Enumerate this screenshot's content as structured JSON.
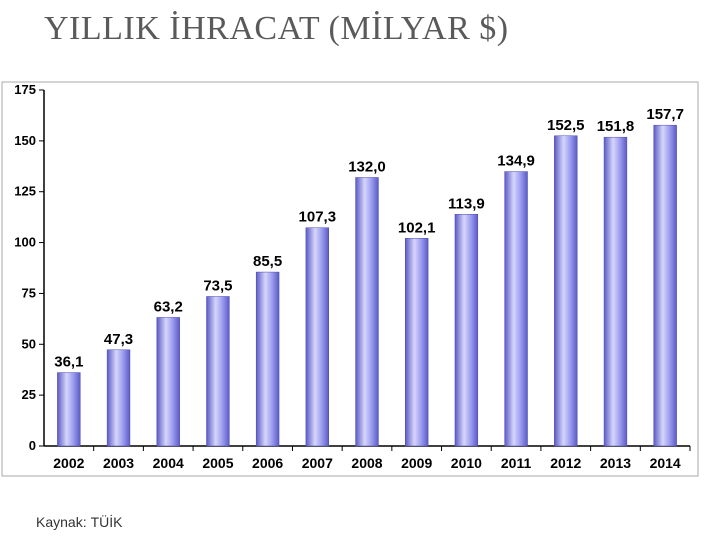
{
  "slide": {
    "title": "YILLIK İHRACAT (MİLYAR $)"
  },
  "source": {
    "label": "Kaynak:",
    "value": "TÜİK"
  },
  "colors": {
    "bar_light": "#d6d6fb",
    "bar_mid": "#9b9bef",
    "bar_dark": "#5a5ac6",
    "axis": "#000000",
    "border": "#a8a8a8"
  },
  "chart_data": {
    "type": "bar",
    "title": "",
    "xlabel": "",
    "ylabel": "",
    "ylim": [
      0,
      175
    ],
    "yticks": [
      0,
      25,
      50,
      75,
      100,
      125,
      150,
      175
    ],
    "grid": false,
    "categories": [
      "2002",
      "2003",
      "2004",
      "2005",
      "2006",
      "2007",
      "2008",
      "2009",
      "2010",
      "2011",
      "2012",
      "2013",
      "2014"
    ],
    "values": [
      36.1,
      47.3,
      63.2,
      73.5,
      85.5,
      107.3,
      132.0,
      102.1,
      113.9,
      134.9,
      152.5,
      151.8,
      157.7
    ],
    "data_labels": [
      "36,1",
      "47,3",
      "63,2",
      "73,5",
      "85,5",
      "107,3",
      "132,0",
      "102,1",
      "113,9",
      "134,9",
      "152,5",
      "151,8",
      "157,7"
    ]
  }
}
